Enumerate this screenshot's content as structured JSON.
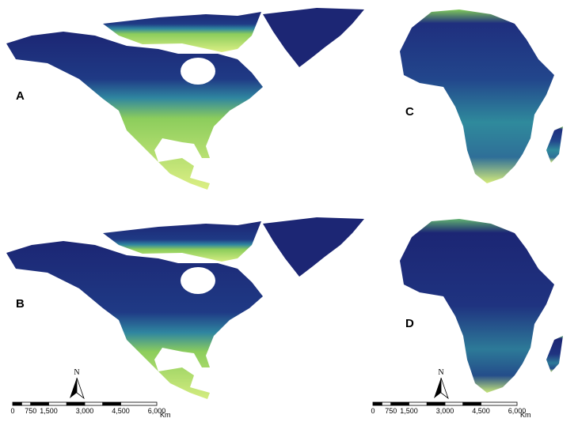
{
  "panels": [
    {
      "label": "A"
    },
    {
      "label": "B"
    },
    {
      "label": "C"
    },
    {
      "label": "D"
    }
  ],
  "scale_bars": [
    {
      "north": "N",
      "labels": [
        "0",
        "750",
        "1,500",
        "3,000",
        "4,500",
        "6,000"
      ],
      "unit": "Km"
    },
    {
      "north": "N",
      "labels": [
        "0",
        "750",
        "1,500",
        "3,000",
        "4,500",
        "6,000"
      ],
      "unit": "Km"
    }
  ]
}
